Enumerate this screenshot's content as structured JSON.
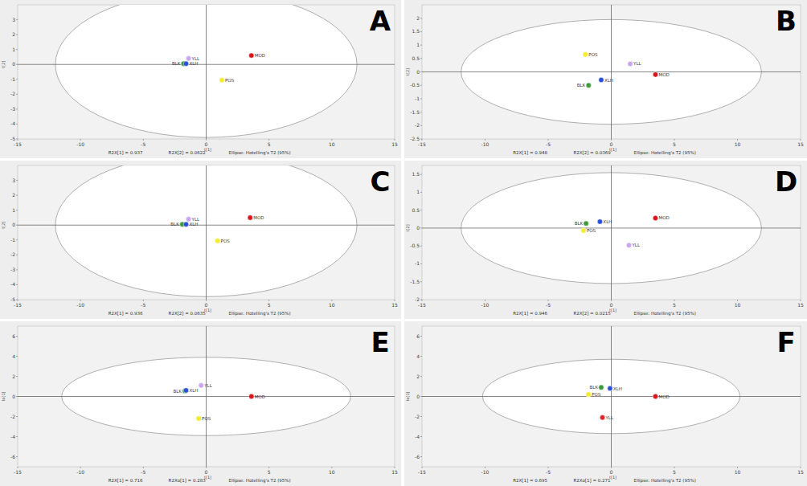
{
  "chart_data": [
    {
      "type": "scatter",
      "title": "A",
      "x_label": "t[1]",
      "y_label": "t[2]",
      "annotations": [
        "R2X[1] = 0.937",
        "R2X[2] = 0.0622",
        "Ellipse: Hotelling's T2 (95%)"
      ],
      "xlim": [
        -15,
        15
      ],
      "xticks": [
        -15,
        -10,
        -5,
        0,
        5,
        10,
        15
      ],
      "ylim": [
        -5,
        4
      ],
      "yticks": [
        -5,
        -4,
        -3,
        -2,
        -1,
        0,
        1,
        2,
        3
      ],
      "ellipse": {
        "x_radius": 12,
        "y_radius": 4.9
      },
      "series": [
        {
          "name": "BLK",
          "color": "#3c9a3c",
          "marker": "circle",
          "x": [
            -1.8
          ],
          "values": [
            0.05
          ]
        },
        {
          "name": "XLH",
          "color": "#2a4fd8",
          "marker": "circle",
          "x": [
            -1.6
          ],
          "values": [
            0.05
          ]
        },
        {
          "name": "YLL",
          "color": "#c9a6ef",
          "marker": "circle",
          "x": [
            -1.4
          ],
          "values": [
            0.4
          ]
        },
        {
          "name": "MOD",
          "color": "#d9141b",
          "marker": "circle",
          "x": [
            3.6
          ],
          "values": [
            0.6
          ]
        },
        {
          "name": "POS",
          "color": "#f1ec2e",
          "marker": "circle",
          "x": [
            1.25
          ],
          "values": [
            -1.05
          ]
        }
      ]
    },
    {
      "type": "scatter",
      "title": "B",
      "x_label": "t[1]",
      "y_label": "t[2]",
      "annotations": [
        "R2X[1] = 0.948",
        "R2X[2] = 0.0369",
        "Ellipse: Hotelling's T2 (95%)"
      ],
      "xlim": [
        -15,
        15
      ],
      "xticks": [
        -15,
        -10,
        -5,
        0,
        5,
        10,
        15
      ],
      "ylim": [
        -2.5,
        2.5
      ],
      "yticks": [
        -2.5,
        -2,
        -1.5,
        -1,
        -0.5,
        0,
        0.5,
        1,
        1.5,
        2
      ],
      "ellipse": {
        "x_radius": 11.9,
        "y_radius": 1.95
      },
      "series": [
        {
          "name": "BLK",
          "color": "#3c9a3c",
          "marker": "circle",
          "x": [
            -1.8
          ],
          "values": [
            -0.5
          ]
        },
        {
          "name": "XLH",
          "color": "#2a4fd8",
          "marker": "circle",
          "x": [
            -0.8
          ],
          "values": [
            -0.3
          ]
        },
        {
          "name": "YLL",
          "color": "#c9a6ef",
          "marker": "circle",
          "x": [
            1.5
          ],
          "values": [
            0.3
          ]
        },
        {
          "name": "MOD",
          "color": "#d9141b",
          "marker": "circle",
          "x": [
            3.5
          ],
          "values": [
            -0.1
          ]
        },
        {
          "name": "POS",
          "color": "#f1ec2e",
          "marker": "circle",
          "x": [
            -2.05
          ],
          "values": [
            0.65
          ]
        }
      ]
    },
    {
      "type": "scatter",
      "title": "C",
      "x_label": "t[1]",
      "y_label": "t[2]",
      "annotations": [
        "R2X[1] = 0.936",
        "R2X[2] = 0.0635",
        "Ellipse: Hotelling's T2 (95%)"
      ],
      "xlim": [
        -15,
        15
      ],
      "xticks": [
        -15,
        -10,
        -5,
        0,
        5,
        10,
        15
      ],
      "ylim": [
        -5,
        4
      ],
      "yticks": [
        -5,
        -4,
        -3,
        -2,
        -1,
        0,
        1,
        2,
        3
      ],
      "ellipse": {
        "x_radius": 12,
        "y_radius": 4.8
      },
      "series": [
        {
          "name": "BLK",
          "color": "#3c9a3c",
          "marker": "circle",
          "x": [
            -1.9
          ],
          "values": [
            0.05
          ]
        },
        {
          "name": "XLH",
          "color": "#2a4fd8",
          "marker": "circle",
          "x": [
            -1.6
          ],
          "values": [
            0.05
          ]
        },
        {
          "name": "YLL",
          "color": "#c9a6ef",
          "marker": "circle",
          "x": [
            -1.4
          ],
          "values": [
            0.4
          ]
        },
        {
          "name": "MOD",
          "color": "#d9141b",
          "marker": "circle",
          "x": [
            3.5
          ],
          "values": [
            0.5
          ]
        },
        {
          "name": "POS",
          "color": "#f1ec2e",
          "marker": "circle",
          "x": [
            0.9
          ],
          "values": [
            -1.05
          ]
        }
      ]
    },
    {
      "type": "scatter",
      "title": "D",
      "x_label": "t[1]",
      "y_label": "t[2]",
      "annotations": [
        "R2X[1] = 0.946",
        "R2X[2] = 0.0215",
        "Ellipse: Hotelling's T2 (95%)"
      ],
      "xlim": [
        -15,
        15
      ],
      "xticks": [
        -15,
        -10,
        -5,
        0,
        5,
        10,
        15
      ],
      "ylim": [
        -2,
        1.75
      ],
      "yticks": [
        -2,
        -1.5,
        -1,
        -0.5,
        0,
        0.5,
        1,
        1.5
      ],
      "ellipse": {
        "x_radius": 11.9,
        "y_radius": 1.55
      },
      "series": [
        {
          "name": "BLK",
          "color": "#3c9a3c",
          "marker": "circle",
          "x": [
            -2.0
          ],
          "values": [
            0.13
          ]
        },
        {
          "name": "XLH",
          "color": "#2a4fd8",
          "marker": "circle",
          "x": [
            -0.9
          ],
          "values": [
            0.18
          ]
        },
        {
          "name": "YLL",
          "color": "#c9a6ef",
          "marker": "circle",
          "x": [
            1.4
          ],
          "values": [
            -0.48
          ]
        },
        {
          "name": "MOD",
          "color": "#d9141b",
          "marker": "circle",
          "x": [
            3.5
          ],
          "values": [
            0.28
          ]
        },
        {
          "name": "POS",
          "color": "#f1ec2e",
          "marker": "circle",
          "x": [
            -2.2
          ],
          "values": [
            -0.07
          ]
        }
      ]
    },
    {
      "type": "scatter",
      "title": "E",
      "x_label": "t[1]",
      "y_label": "to[1]",
      "annotations": [
        "R2X[1] = 0.716",
        "R2Xo[1] = 0.283",
        "Ellipse: Hotelling's T2 (95%)"
      ],
      "xlim": [
        -15,
        15
      ],
      "xticks": [
        -15,
        -10,
        -5,
        0,
        5,
        10,
        15
      ],
      "ylim": [
        -7,
        7
      ],
      "yticks": [
        -6,
        -4,
        -2,
        0,
        2,
        4,
        6
      ],
      "ellipse": {
        "x_radius": 11.5,
        "y_radius": 3.9
      },
      "series": [
        {
          "name": "BLK",
          "color": "#3c9a3c",
          "marker": "circle",
          "x": [
            -1.7
          ],
          "values": [
            0.55
          ]
        },
        {
          "name": "XLH",
          "color": "#2a4fd8",
          "marker": "circle",
          "x": [
            -1.6
          ],
          "values": [
            0.6
          ]
        },
        {
          "name": "YLL",
          "color": "#c9a6ef",
          "marker": "circle",
          "x": [
            -0.4
          ],
          "values": [
            1.1
          ]
        },
        {
          "name": "MOD",
          "color": "#d9141b",
          "marker": "circle",
          "x": [
            3.6
          ],
          "values": [
            0.0
          ]
        },
        {
          "name": "POS",
          "color": "#f1ec2e",
          "marker": "circle",
          "x": [
            -0.6
          ],
          "values": [
            -2.2
          ]
        }
      ]
    },
    {
      "type": "scatter",
      "title": "F",
      "x_label": "t[1]",
      "y_label": "to[1]",
      "annotations": [
        "R2X[1] = 0.695",
        "R2Xo[1] = 0.271",
        "Ellipse: Hotelling's T2 (95%)"
      ],
      "xlim": [
        -15,
        15
      ],
      "xticks": [
        -15,
        -10,
        -5,
        0,
        5,
        10,
        15
      ],
      "ylim": [
        -7,
        7
      ],
      "yticks": [
        -6,
        -4,
        -2,
        0,
        2,
        4,
        6
      ],
      "ellipse": {
        "x_radius": 10.2,
        "y_radius": 3.7
      },
      "series": [
        {
          "name": "BLK",
          "color": "#3c9a3c",
          "marker": "circle",
          "x": [
            -0.8
          ],
          "values": [
            0.9
          ]
        },
        {
          "name": "XLH",
          "color": "#2a4fd8",
          "marker": "circle",
          "x": [
            -0.1
          ],
          "values": [
            0.8
          ]
        },
        {
          "name": "YLL",
          "color": "#e0232b",
          "marker": "circle",
          "x": [
            -0.7
          ],
          "values": [
            -2.1
          ]
        },
        {
          "name": "MOD",
          "color": "#d9141b",
          "marker": "circle",
          "x": [
            3.5
          ],
          "values": [
            0.0
          ]
        },
        {
          "name": "POS",
          "color": "#f1ec2e",
          "marker": "circle",
          "x": [
            -1.8
          ],
          "values": [
            0.2
          ]
        }
      ]
    }
  ]
}
